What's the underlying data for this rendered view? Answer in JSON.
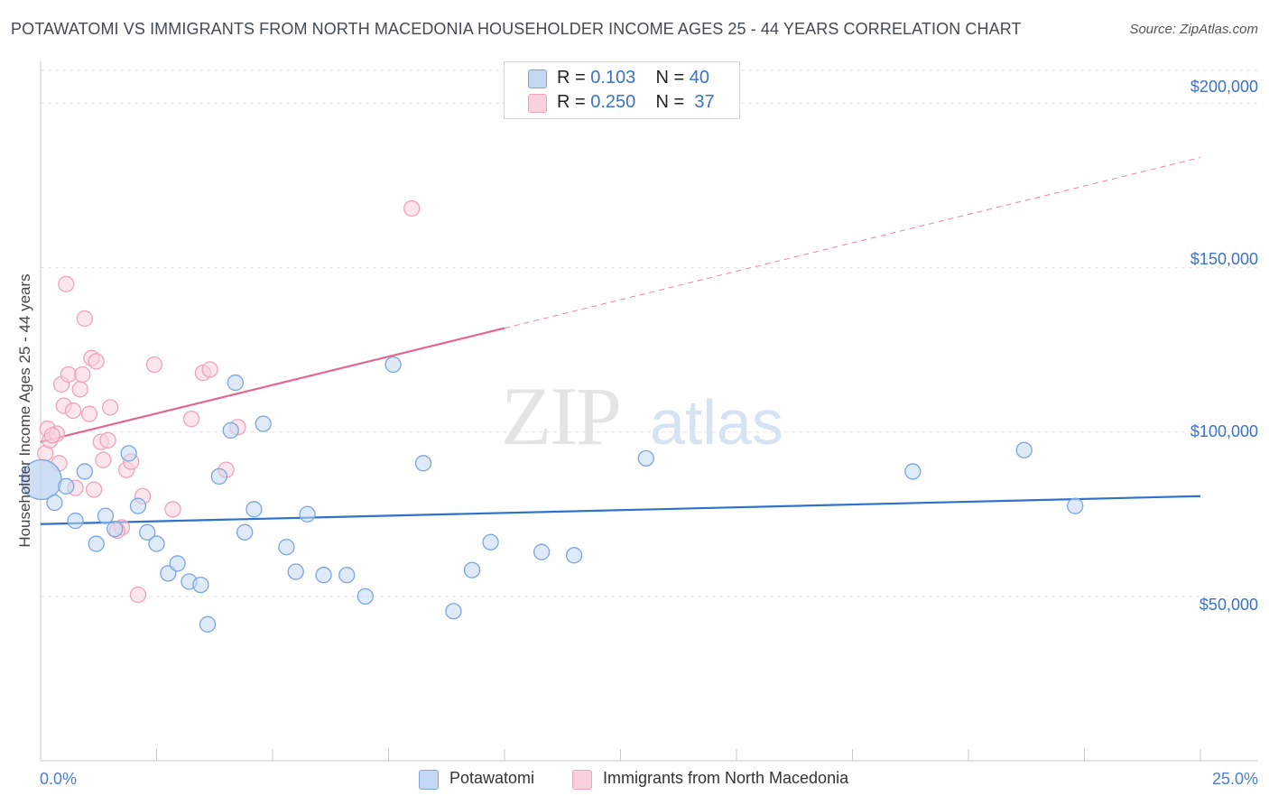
{
  "chart_data": {
    "type": "scatter",
    "title": "POTAWATOMI VS IMMIGRANTS FROM NORTH MACEDONIA HOUSEHOLDER INCOME AGES 25 - 44 YEARS CORRELATION CHART",
    "source": "Source: ZipAtlas.com",
    "xlabel": "",
    "ylabel": "Householder Income Ages 25 - 44 years",
    "xlim": [
      0,
      25
    ],
    "ylim": [
      0,
      210000
    ],
    "x_tick_labels": [
      "0.0%",
      "25.0%"
    ],
    "y_ticks": [
      {
        "value": 50000,
        "label": "$50,000"
      },
      {
        "value": 100000,
        "label": "$100,000"
      },
      {
        "value": 150000,
        "label": "$150,000"
      },
      {
        "value": 200000,
        "label": "$200,000"
      }
    ],
    "grid": "horizontal dashed",
    "watermark": "ZIPatlas",
    "stats": [
      {
        "r_label": "R =",
        "r": "0.103",
        "n_label": "N =",
        "n": "40"
      },
      {
        "r_label": "R =",
        "r": "0.250",
        "n_label": "N =",
        "n": "37"
      }
    ],
    "series": [
      {
        "name": "Potawatomi",
        "color": "#7aa6e0",
        "fill": "#c5d8f3",
        "line_color": "#2f72cc",
        "trend": {
          "x": [
            0,
            25
          ],
          "y": [
            72000,
            80500
          ],
          "dashed_after": null
        },
        "points": [
          [
            0.02,
            85500,
            "big"
          ],
          [
            0.3,
            78500
          ],
          [
            0.55,
            83500
          ],
          [
            0.75,
            73000
          ],
          [
            0.95,
            88000
          ],
          [
            1.2,
            66000
          ],
          [
            1.4,
            74500
          ],
          [
            1.6,
            70500
          ],
          [
            1.9,
            93500
          ],
          [
            2.1,
            77500
          ],
          [
            2.3,
            69500
          ],
          [
            2.5,
            66000
          ],
          [
            2.75,
            57000
          ],
          [
            2.95,
            60000
          ],
          [
            3.2,
            54500
          ],
          [
            3.45,
            53500
          ],
          [
            3.6,
            41500
          ],
          [
            3.85,
            86500
          ],
          [
            4.1,
            100500
          ],
          [
            4.2,
            115000
          ],
          [
            4.4,
            69500
          ],
          [
            4.6,
            76500
          ],
          [
            4.8,
            102500
          ],
          [
            5.3,
            65000
          ],
          [
            5.5,
            57500
          ],
          [
            5.75,
            75000
          ],
          [
            6.1,
            56500
          ],
          [
            6.6,
            56500
          ],
          [
            7.0,
            50000
          ],
          [
            7.6,
            120500
          ],
          [
            8.25,
            90500
          ],
          [
            8.9,
            45500
          ],
          [
            9.3,
            58000
          ],
          [
            9.7,
            66500
          ],
          [
            10.8,
            63500
          ],
          [
            11.5,
            62500
          ],
          [
            13.05,
            92000
          ],
          [
            18.8,
            88000
          ],
          [
            21.2,
            94500
          ],
          [
            22.3,
            77500
          ]
        ]
      },
      {
        "name": "Immigrants from North Macedonia",
        "color": "#f2a2bb",
        "fill": "#f9d1dd",
        "line_color": "#e4668e",
        "trend": {
          "x": [
            0,
            25
          ],
          "y": [
            97000,
            183500
          ],
          "dashed_after": 10.0
        },
        "points": [
          [
            0.1,
            93500
          ],
          [
            0.15,
            101000
          ],
          [
            0.2,
            97500
          ],
          [
            0.35,
            99500
          ],
          [
            0.4,
            90500
          ],
          [
            0.45,
            114500
          ],
          [
            0.5,
            108000
          ],
          [
            0.55,
            145000
          ],
          [
            0.6,
            117500
          ],
          [
            0.7,
            106500
          ],
          [
            0.75,
            83000
          ],
          [
            0.85,
            113000
          ],
          [
            0.9,
            117500
          ],
          [
            0.95,
            134500
          ],
          [
            1.05,
            105500
          ],
          [
            1.1,
            122500
          ],
          [
            1.15,
            82500
          ],
          [
            1.2,
            121500
          ],
          [
            1.3,
            97000
          ],
          [
            1.35,
            91500
          ],
          [
            1.45,
            97500
          ],
          [
            1.5,
            107500
          ],
          [
            1.75,
            71000
          ],
          [
            1.85,
            88500
          ],
          [
            1.95,
            91000
          ],
          [
            2.1,
            50500
          ],
          [
            2.2,
            80500
          ],
          [
            2.45,
            120500
          ],
          [
            2.85,
            76500
          ],
          [
            3.25,
            104000
          ],
          [
            3.5,
            118000
          ],
          [
            3.65,
            119000
          ],
          [
            4.0,
            88500
          ],
          [
            4.25,
            101500
          ],
          [
            8.0,
            168000
          ],
          [
            1.65,
            70000
          ],
          [
            0.25,
            99000
          ]
        ]
      }
    ]
  }
}
